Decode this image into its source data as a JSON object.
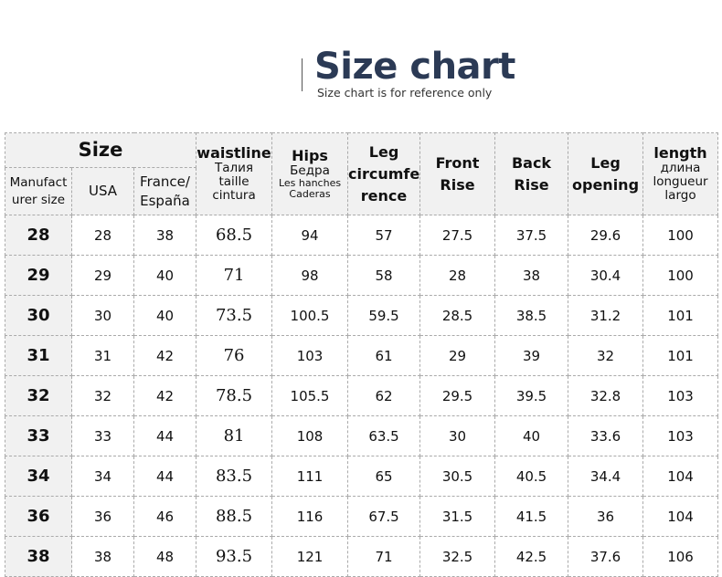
{
  "title": "Size chart",
  "subtitle": "Size chart is for reference only",
  "headers": {
    "size": "Size",
    "manufacturer": "Manufact urer size",
    "usa": "USA",
    "france": "France/ España",
    "waist": {
      "main": "waistline",
      "l1": "Талия",
      "l2": "taille",
      "l3": "cintura"
    },
    "hips": {
      "main": "Hips",
      "l1": "Бедра",
      "l2": "Les hanches",
      "l3": "Caderas"
    },
    "leg_circ": "Leg circumfe rence",
    "front_rise": "Front Rise",
    "back_rise": "Back Rise",
    "leg_opening": "Leg opening",
    "length": {
      "main": "length",
      "l1": "длина",
      "l2": "longueur",
      "l3": "largo"
    }
  },
  "rows": [
    [
      "28",
      "28",
      "38",
      "68.5",
      "94",
      "57",
      "27.5",
      "37.5",
      "29.6",
      "100"
    ],
    [
      "29",
      "29",
      "40",
      "71",
      "98",
      "58",
      "28",
      "38",
      "30.4",
      "100"
    ],
    [
      "30",
      "30",
      "40",
      "73.5",
      "100.5",
      "59.5",
      "28.5",
      "38.5",
      "31.2",
      "101"
    ],
    [
      "31",
      "31",
      "42",
      "76",
      "103",
      "61",
      "29",
      "39",
      "32",
      "101"
    ],
    [
      "32",
      "32",
      "42",
      "78.5",
      "105.5",
      "62",
      "29.5",
      "39.5",
      "32.8",
      "103"
    ],
    [
      "33",
      "33",
      "44",
      "81",
      "108",
      "63.5",
      "30",
      "40",
      "33.6",
      "103"
    ],
    [
      "34",
      "34",
      "44",
      "83.5",
      "111",
      "65",
      "30.5",
      "40.5",
      "34.4",
      "104"
    ],
    [
      "36",
      "36",
      "46",
      "88.5",
      "116",
      "67.5",
      "31.5",
      "41.5",
      "36",
      "104"
    ],
    [
      "38",
      "38",
      "48",
      "93.5",
      "121",
      "71",
      "32.5",
      "42.5",
      "37.6",
      "106"
    ]
  ]
}
